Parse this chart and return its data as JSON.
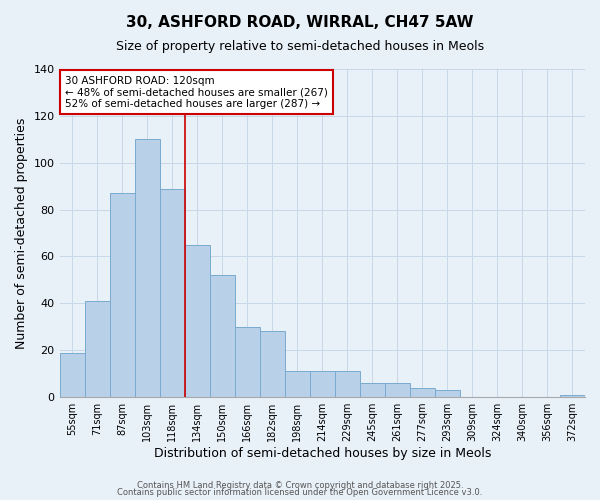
{
  "title": "30, ASHFORD ROAD, WIRRAL, CH47 5AW",
  "subtitle": "Size of property relative to semi-detached houses in Meols",
  "xlabel": "Distribution of semi-detached houses by size in Meols",
  "ylabel": "Number of semi-detached properties",
  "categories": [
    "55sqm",
    "71sqm",
    "87sqm",
    "103sqm",
    "118sqm",
    "134sqm",
    "150sqm",
    "166sqm",
    "182sqm",
    "198sqm",
    "214sqm",
    "229sqm",
    "245sqm",
    "261sqm",
    "277sqm",
    "293sqm",
    "309sqm",
    "324sqm",
    "340sqm",
    "356sqm",
    "372sqm"
  ],
  "values": [
    19,
    41,
    87,
    110,
    89,
    65,
    52,
    30,
    28,
    11,
    11,
    11,
    6,
    6,
    4,
    3,
    0,
    0,
    0,
    0,
    1
  ],
  "bar_color": "#b8d0e8",
  "bar_edge_color": "#7aaad0",
  "vline_index": 4,
  "vline_color": "#cc0000",
  "annotation_title": "30 ASHFORD ROAD: 120sqm",
  "annotation_line1": "← 48% of semi-detached houses are smaller (267)",
  "annotation_line2": "52% of semi-detached houses are larger (287) →",
  "annotation_box_color": "#ffffff",
  "annotation_box_edge": "#cc0000",
  "ylim": [
    0,
    140
  ],
  "yticks": [
    0,
    20,
    40,
    60,
    80,
    100,
    120,
    140
  ],
  "grid_color": "#c8d8e8",
  "bg_color": "#e8f0f8",
  "footer1": "Contains HM Land Registry data © Crown copyright and database right 2025.",
  "footer2": "Contains public sector information licensed under the Open Government Licence v3.0."
}
